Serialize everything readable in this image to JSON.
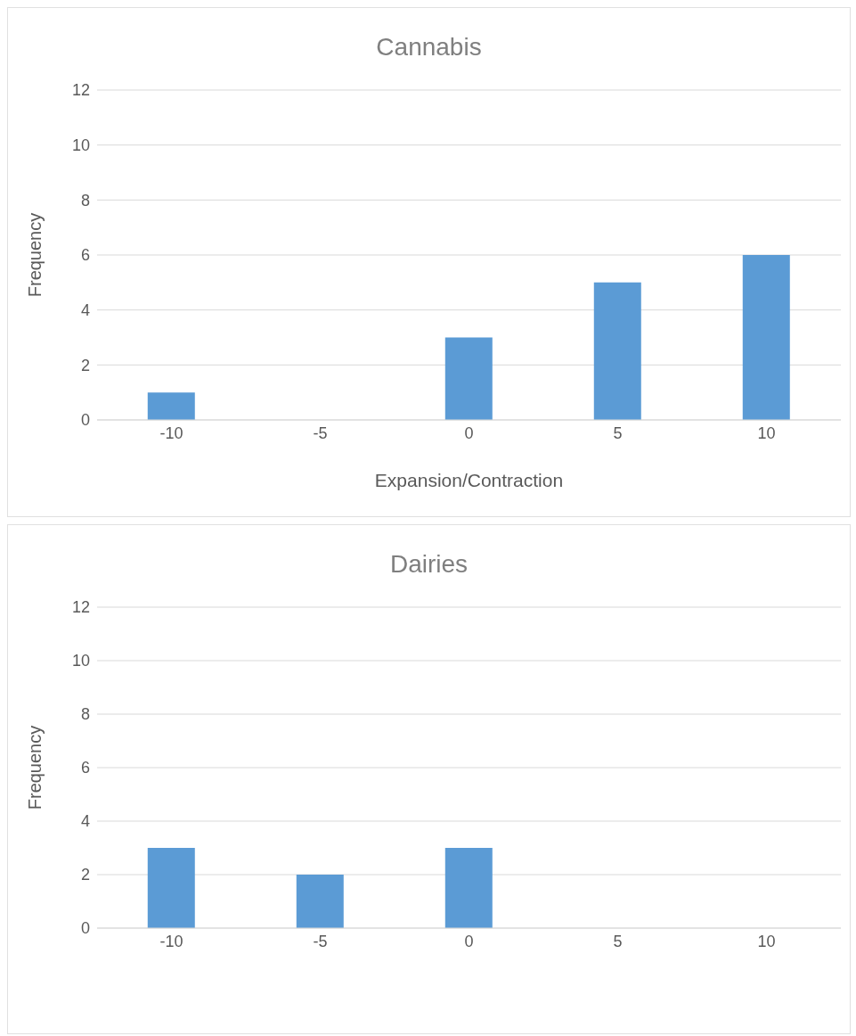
{
  "chart_data": [
    {
      "type": "bar",
      "title": "Cannabis",
      "xlabel": "Expansion/Contraction",
      "ylabel": "Frequency",
      "categories": [
        "-10",
        "-5",
        "0",
        "5",
        "10"
      ],
      "values": [
        1,
        0,
        3,
        5,
        6
      ],
      "color": "#5b9bd5",
      "ylim": [
        0,
        12
      ],
      "yticks": [
        0,
        2,
        4,
        6,
        8,
        10,
        12
      ],
      "grid": "y",
      "legend": false
    },
    {
      "type": "bar",
      "title": "Dairies",
      "ylabel": "Frequency",
      "categories": [
        "-10",
        "-5",
        "0",
        "5",
        "10"
      ],
      "values": [
        3,
        2,
        3,
        0,
        0
      ],
      "color": "#5b9bd5",
      "ylim": [
        0,
        12
      ],
      "yticks": [
        0,
        2,
        4,
        6,
        8,
        10,
        12
      ],
      "grid": "y",
      "legend": false
    }
  ]
}
